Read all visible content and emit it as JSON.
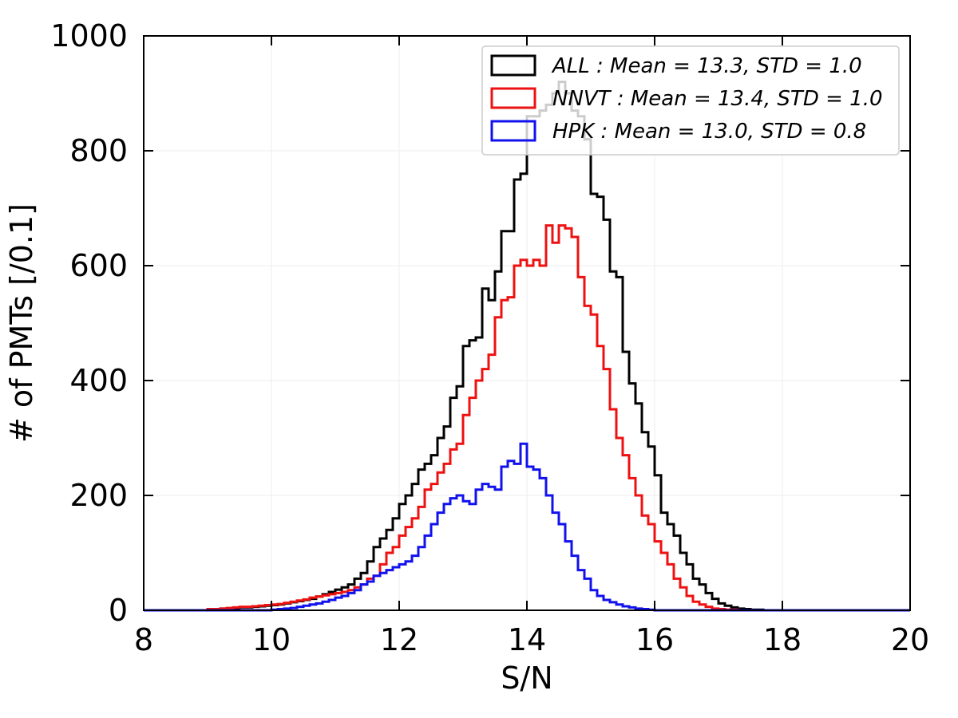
{
  "chart_data": {
    "type": "histogram-step",
    "xlabel": "S/N",
    "ylabel": "# of PMTs [/0.1]",
    "xlim": [
      8,
      20
    ],
    "ylim": [
      0,
      1000
    ],
    "grid": true,
    "legend_position": "top-right",
    "x_ticks": [
      8,
      10,
      12,
      14,
      16,
      18,
      20
    ],
    "y_ticks": [
      0,
      200,
      400,
      600,
      800,
      1000
    ],
    "x_tick_labels": [
      "8",
      "10",
      "12",
      "14",
      "16",
      "18",
      "20"
    ],
    "y_tick_labels": [
      "0",
      "200",
      "400",
      "600",
      "800",
      "1000"
    ],
    "bin_width": 0.1,
    "bin_start": 8.0,
    "series": [
      {
        "name": "ALL",
        "label": "ALL : Mean = 13.3, STD = 1.0",
        "color": "#000000",
        "bins_from": 9.0,
        "values": [
          2,
          2,
          3,
          3,
          4,
          5,
          5,
          6,
          7,
          8,
          9,
          10,
          12,
          14,
          16,
          18,
          20,
          24,
          28,
          32,
          36,
          40,
          45,
          55,
          65,
          85,
          110,
          125,
          140,
          160,
          185,
          200,
          220,
          245,
          255,
          270,
          300,
          320,
          370,
          390,
          460,
          470,
          475,
          560,
          540,
          590,
          660,
          660,
          750,
          760,
          860,
          860,
          870,
          880,
          900,
          920,
          900,
          870,
          860,
          820,
          725,
          720,
          680,
          590,
          580,
          450,
          395,
          360,
          310,
          285,
          235,
          170,
          150,
          130,
          100,
          80,
          55,
          45,
          30,
          20,
          12,
          8,
          5,
          3,
          2,
          1,
          1,
          0,
          0,
          0
        ]
      },
      {
        "name": "NNVT",
        "label": "NNVT : Mean = 13.4, STD = 1.0",
        "color": "#ee1111",
        "bins_from": 9.0,
        "values": [
          2,
          2,
          3,
          4,
          5,
          6,
          6,
          7,
          8,
          9,
          10,
          11,
          13,
          15,
          17,
          19,
          22,
          24,
          26,
          28,
          30,
          32,
          35,
          40,
          45,
          55,
          60,
          80,
          100,
          110,
          130,
          145,
          160,
          180,
          210,
          220,
          240,
          255,
          280,
          290,
          340,
          370,
          400,
          420,
          445,
          510,
          540,
          545,
          600,
          610,
          600,
          610,
          600,
          670,
          640,
          670,
          665,
          650,
          580,
          530,
          515,
          460,
          420,
          350,
          300,
          270,
          230,
          200,
          165,
          150,
          120,
          100,
          80,
          55,
          40,
          25,
          15,
          10,
          6,
          3,
          2,
          1,
          1,
          0,
          0,
          0,
          0,
          0,
          0,
          0
        ]
      },
      {
        "name": "HPK",
        "label": "HPK : Mean = 13.0, STD = 0.8",
        "color": "#1111ee",
        "bins_from": 10.0,
        "values": [
          1,
          2,
          3,
          4,
          6,
          8,
          10,
          12,
          15,
          18,
          22,
          25,
          30,
          35,
          45,
          50,
          60,
          65,
          70,
          75,
          80,
          85,
          95,
          110,
          130,
          150,
          170,
          185,
          195,
          200,
          190,
          185,
          210,
          220,
          215,
          210,
          250,
          260,
          255,
          290,
          250,
          245,
          230,
          200,
          170,
          150,
          120,
          95,
          70,
          55,
          35,
          25,
          18,
          14,
          10,
          7,
          5,
          3,
          2,
          1
        ]
      }
    ]
  }
}
